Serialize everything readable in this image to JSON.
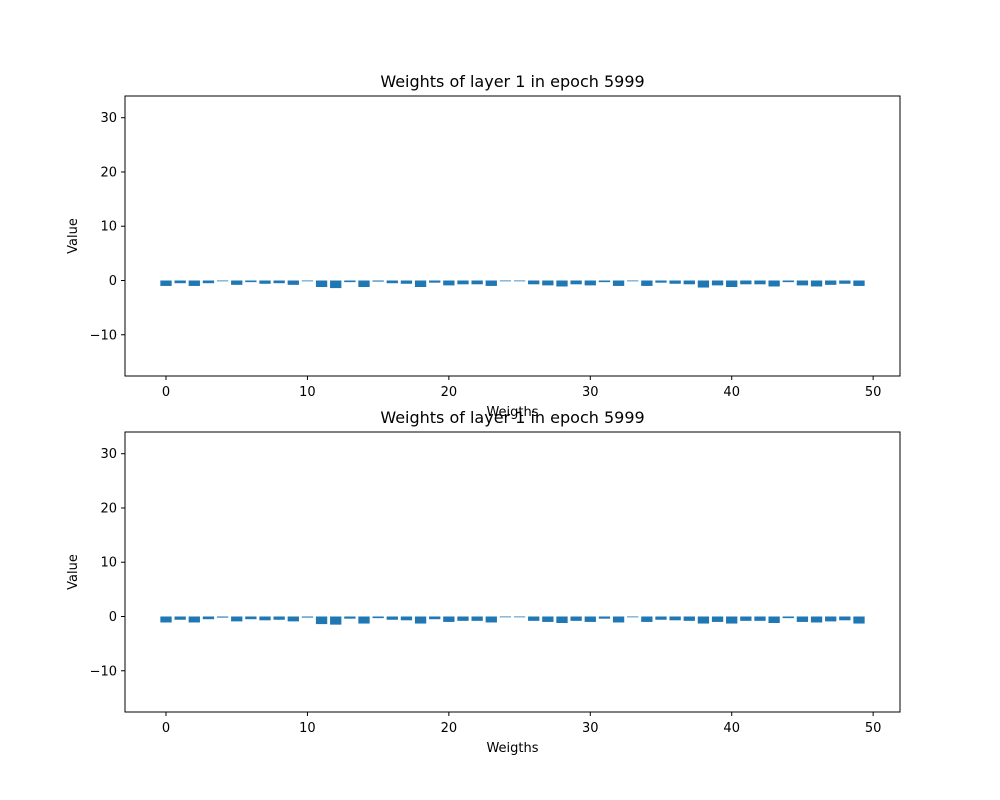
{
  "chart_data": [
    {
      "type": "bar",
      "title": "Weights of layer 1 in epoch 5999",
      "xlabel": "Weigths",
      "ylabel": "Value",
      "xlim": [
        -2.9,
        51.9
      ],
      "ylim": [
        -17.6,
        34.0
      ],
      "xticks": [
        0,
        10,
        20,
        30,
        40,
        50
      ],
      "yticks": [
        -10,
        0,
        10,
        20,
        30
      ],
      "color": "#1f77b4",
      "categories": [
        0,
        1,
        2,
        3,
        4,
        5,
        6,
        7,
        8,
        9,
        10,
        11,
        12,
        13,
        14,
        15,
        16,
        17,
        18,
        19,
        20,
        21,
        22,
        23,
        24,
        25,
        26,
        27,
        28,
        29,
        30,
        31,
        32,
        33,
        34,
        35,
        36,
        37,
        38,
        39,
        40,
        41,
        42,
        43,
        44,
        45,
        46,
        47,
        48,
        49
      ],
      "values": [
        -1.0,
        -0.5,
        -1.0,
        -0.5,
        0.0,
        -0.8,
        -0.3,
        -0.6,
        -0.5,
        -0.8,
        -0.1,
        -1.2,
        -1.4,
        -0.3,
        -1.2,
        -0.2,
        -0.5,
        -0.6,
        -1.2,
        -0.4,
        -0.9,
        -0.7,
        -0.7,
        -1.0,
        -0.1,
        -0.1,
        -0.7,
        -0.9,
        -1.1,
        -0.7,
        -0.9,
        -0.3,
        -1.0,
        -0.1,
        -1.0,
        -0.4,
        -0.6,
        -0.7,
        -1.3,
        -0.9,
        -1.2,
        -0.7,
        -0.7,
        -1.1,
        -0.3,
        -0.9,
        -1.1,
        -0.8,
        -0.6,
        -1.0
      ]
    },
    {
      "type": "bar",
      "title": "Weights of layer 1 in epoch 5999",
      "xlabel": "Weigths",
      "ylabel": "Value",
      "xlim": [
        -2.9,
        51.9
      ],
      "ylim": [
        -17.6,
        34.0
      ],
      "xticks": [
        0,
        10,
        20,
        30,
        40,
        50
      ],
      "yticks": [
        -10,
        0,
        10,
        20,
        30
      ],
      "color": "#1f77b4",
      "categories": [
        0,
        1,
        2,
        3,
        4,
        5,
        6,
        7,
        8,
        9,
        10,
        11,
        12,
        13,
        14,
        15,
        16,
        17,
        18,
        19,
        20,
        21,
        22,
        23,
        24,
        25,
        26,
        27,
        28,
        29,
        30,
        31,
        32,
        33,
        34,
        35,
        36,
        37,
        38,
        39,
        40,
        41,
        42,
        43,
        44,
        45,
        46,
        47,
        48,
        49
      ],
      "values": [
        -1.1,
        -0.6,
        -1.1,
        -0.5,
        -0.2,
        -0.9,
        -0.5,
        -0.7,
        -0.6,
        -0.9,
        -0.2,
        -1.4,
        -1.5,
        -0.4,
        -1.3,
        -0.3,
        -0.6,
        -0.7,
        -1.3,
        -0.5,
        -1.0,
        -0.8,
        -0.8,
        -1.1,
        -0.1,
        -0.1,
        -0.8,
        -1.0,
        -1.2,
        -0.8,
        -1.0,
        -0.4,
        -1.1,
        -0.1,
        -1.0,
        -0.6,
        -0.7,
        -0.8,
        -1.3,
        -1.0,
        -1.3,
        -0.8,
        -0.8,
        -1.2,
        -0.3,
        -1.0,
        -1.1,
        -0.9,
        -0.7,
        -1.3
      ]
    }
  ]
}
